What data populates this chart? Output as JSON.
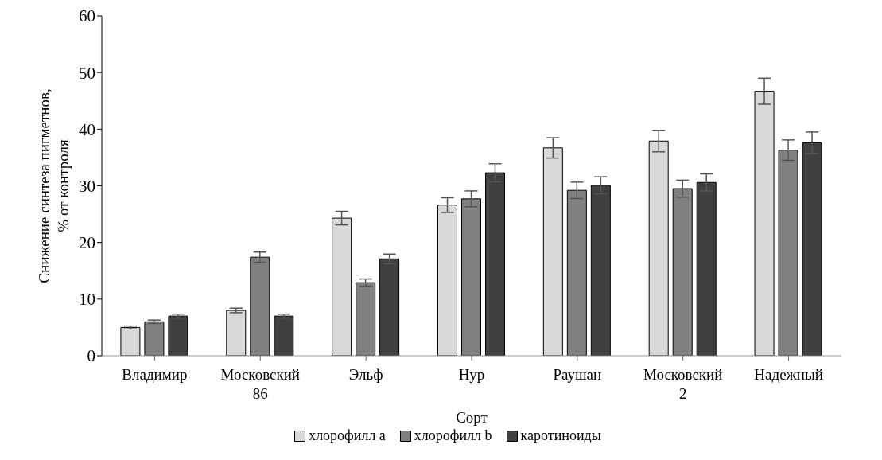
{
  "chart_data": {
    "type": "bar",
    "xlabel": "Сорт",
    "ylabel": "Снижение синтеза пигметнов, % от контроля",
    "categories": [
      "Владимир",
      "Московский 86",
      "Эльф",
      "Нур",
      "Раушан",
      "Московский 2",
      "Надежный"
    ],
    "series": [
      {
        "name": "хлорофилл a",
        "color": "#d9d9d9",
        "values": [
          5.0,
          8.0,
          24.3,
          26.6,
          36.7,
          37.9,
          46.7
        ],
        "errors": [
          0.25,
          0.4,
          1.2,
          1.3,
          1.8,
          1.9,
          2.3
        ]
      },
      {
        "name": "хлорофилл b",
        "color": "#808080",
        "values": [
          6.0,
          17.4,
          12.9,
          27.7,
          29.2,
          29.5,
          36.3
        ],
        "errors": [
          0.3,
          0.9,
          0.65,
          1.4,
          1.45,
          1.5,
          1.8
        ]
      },
      {
        "name": "каротиноиды",
        "color": "#404040",
        "values": [
          7.0,
          7.0,
          17.1,
          32.3,
          30.1,
          30.6,
          37.6
        ],
        "errors": [
          0.35,
          0.35,
          0.85,
          1.6,
          1.5,
          1.5,
          1.9
        ]
      }
    ],
    "ylim": [
      0,
      60
    ],
    "yticks": [
      0,
      10,
      20,
      30,
      40,
      50,
      60
    ],
    "legend": "bottom"
  }
}
